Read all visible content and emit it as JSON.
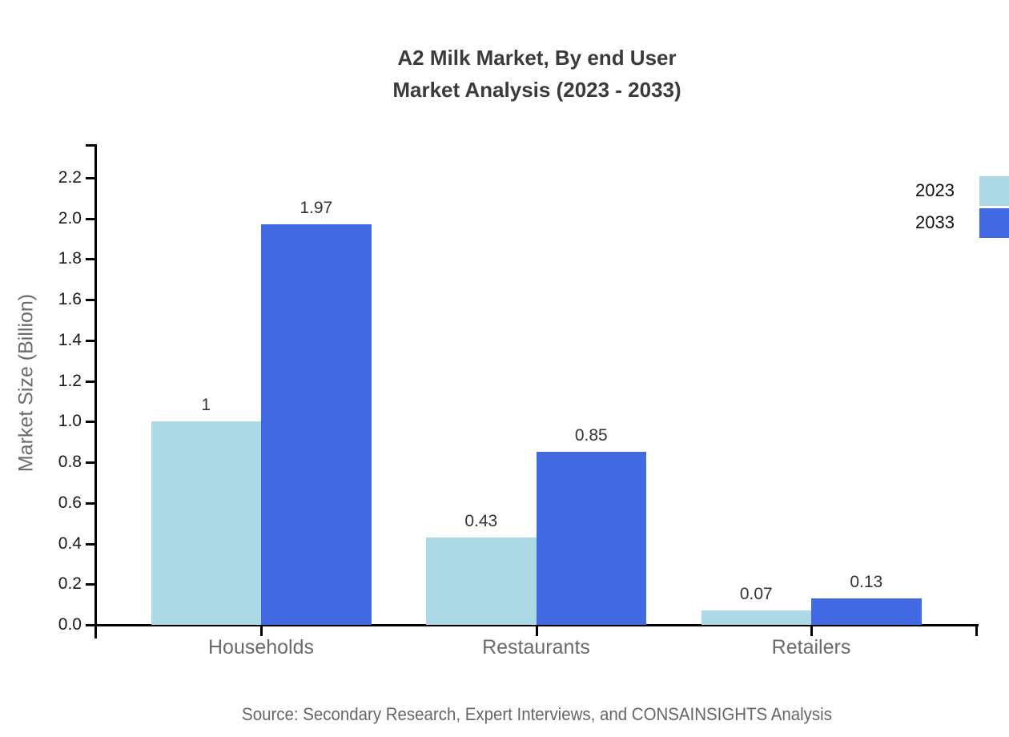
{
  "title": {
    "line1": "A2 Milk Market, By end User",
    "line2": "Market Analysis (2023 - 2033)"
  },
  "source_text": "Source: Secondary Research, Expert Interviews, and CONSAINSIGHTS Analysis",
  "chart_data": {
    "type": "bar",
    "title": "A2 Milk Market, By end User Market Analysis (2023 - 2033)",
    "categories": [
      "Households",
      "Restaurants",
      "Retailers"
    ],
    "series": [
      {
        "name": "2023",
        "color": "#ADD8E6",
        "values": [
          1,
          0.43,
          0.07
        ]
      },
      {
        "name": "2033",
        "color": "#4169E1",
        "values": [
          1.97,
          0.85,
          0.13
        ]
      }
    ],
    "value_labels": [
      [
        "1",
        "0.43",
        "0.07"
      ],
      [
        "1.97",
        "0.85",
        "0.13"
      ]
    ],
    "xlabel": "",
    "ylabel": "Market Size (Billion)",
    "ylim": [
      0,
      2.2
    ],
    "ytick_labels": [
      "0.0",
      "0.2",
      "0.4",
      "0.6",
      "0.8",
      "1.0",
      "1.2",
      "1.4",
      "1.6",
      "1.8",
      "2.0",
      "2.2"
    ],
    "grid": false,
    "legend_position": "top-right-edge",
    "bar_label_color": "#333333",
    "axis_color": "#000000"
  }
}
